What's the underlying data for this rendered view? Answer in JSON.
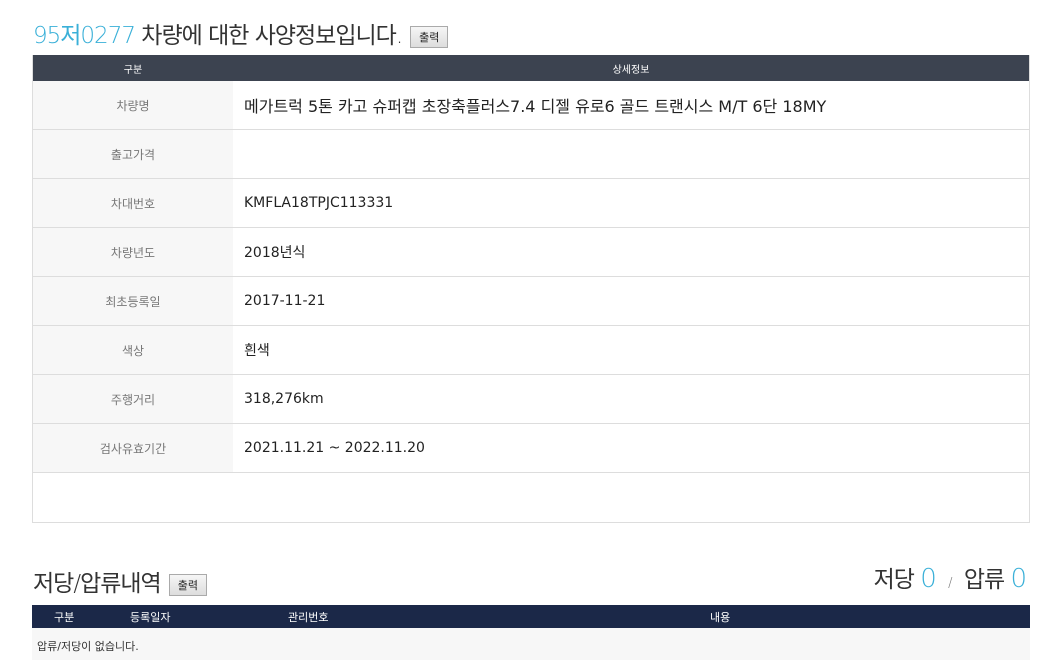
{
  "spec": {
    "plate": "95저0277",
    "title_suffix": " 차량에 대한 사양정보입니다.",
    "print_label": "출력",
    "header": [
      "구분",
      "상세정보"
    ],
    "rows": [
      {
        "label": "차량명",
        "value": "메가트럭 5톤 카고 슈퍼캡 초장축플러스7.4 디젤 유로6 골드 트랜시스 M/T 6단 18MY"
      },
      {
        "label": "출고가격",
        "value": ""
      },
      {
        "label": "차대번호",
        "value": "KMFLA18TPJC113331"
      },
      {
        "label": "차량년도",
        "value": "2018년식"
      },
      {
        "label": "최초등록일",
        "value": "2017-11-21"
      },
      {
        "label": "색상",
        "value": "흰색"
      },
      {
        "label": "주행거리",
        "value": "318,276km"
      },
      {
        "label": "검사유효기간",
        "value": "2021.11.21 ~ 2022.11.20"
      }
    ]
  },
  "lien": {
    "title": "저당/압류내역",
    "print_label": "출력",
    "mortgage_label": "저당",
    "mortgage_count": "0",
    "separator": "/",
    "seizure_label": "압류",
    "seizure_count": "0",
    "columns": [
      "구분",
      "등록일자",
      "관리번호",
      "내용"
    ],
    "empty_text": "압류/저당이 없습니다."
  },
  "colors": {
    "accent": "#3ab0d8",
    "header": "#3c4350",
    "header2": "#1b2848"
  }
}
